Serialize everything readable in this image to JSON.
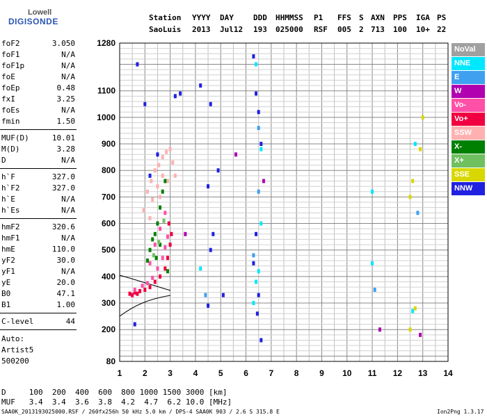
{
  "logo": {
    "line1": "Lowell",
    "line2": "DIGISONDE"
  },
  "header": {
    "labels": [
      "Station",
      "YYYY",
      "DAY",
      "DDD",
      "HHMMSS",
      "P1",
      "FFS",
      "S",
      "AXN",
      "PPS",
      "IGA",
      "PS"
    ],
    "values": [
      "SaoLuis",
      "2013",
      "Jul12",
      "193",
      "025000",
      "RSF",
      "005",
      "2",
      "713",
      "100",
      "10+",
      "22"
    ]
  },
  "params": {
    "group1": [
      {
        "k": "foF2",
        "v": "3.050"
      },
      {
        "k": "foF1",
        "v": "N/A"
      },
      {
        "k": "foF1p",
        "v": "N/A"
      },
      {
        "k": "foE",
        "v": "N/A"
      },
      {
        "k": "foEp",
        "v": "0.48"
      },
      {
        "k": "fxI",
        "v": "3.25"
      },
      {
        "k": "foEs",
        "v": "N/A"
      },
      {
        "k": "fmin",
        "v": "1.50"
      }
    ],
    "group2": [
      {
        "k": "MUF(D)",
        "v": "10.01"
      },
      {
        "k": "M(D)",
        "v": "3.28"
      },
      {
        "k": "D",
        "v": "N/A"
      }
    ],
    "group3": [
      {
        "k": "h`F",
        "v": "327.0"
      },
      {
        "k": "h`F2",
        "v": "327.0"
      },
      {
        "k": "h`E",
        "v": "N/A"
      },
      {
        "k": "h`Es",
        "v": "N/A"
      }
    ],
    "group4": [
      {
        "k": "hmF2",
        "v": "320.6"
      },
      {
        "k": "hmF1",
        "v": "N/A"
      },
      {
        "k": "hmE",
        "v": "110.0"
      },
      {
        "k": "yF2",
        "v": "30.0"
      },
      {
        "k": "yF1",
        "v": "N/A"
      },
      {
        "k": "yE",
        "v": "20.0"
      },
      {
        "k": "B0",
        "v": "47.1"
      },
      {
        "k": "B1",
        "v": "1.00"
      }
    ],
    "clevel": {
      "k": "C-level",
      "v": "44"
    },
    "auto": [
      "Auto:",
      "Artist5",
      "500200"
    ]
  },
  "legend": [
    {
      "label": "NoVal",
      "color": "#a0a0a0"
    },
    {
      "label": "NNE",
      "color": "#00e8ff"
    },
    {
      "label": "E",
      "color": "#40a0f0"
    },
    {
      "label": "W",
      "color": "#b000b0"
    },
    {
      "label": "Vo-",
      "color": "#ff50a8"
    },
    {
      "label": "Vo+",
      "color": "#f00040"
    },
    {
      "label": "SSW",
      "color": "#ffb0b0"
    },
    {
      "label": "X-",
      "color": "#008000"
    },
    {
      "label": "X+",
      "color": "#70c060"
    },
    {
      "label": "SSE",
      "color": "#d8d800"
    },
    {
      "label": "NNW",
      "color": "#2020e0"
    }
  ],
  "bottom": {
    "d_row": "D     100  200  400  600  800 1000 1500 3000 [km]",
    "muf_row": "MUF   3.4  3.4  3.6  3.8  4.2  4.7  6.2 10.0 [MHz]"
  },
  "footer": {
    "left": "SAA0K_2013193025000.RSF / 260fx256h 50 kHz 5.0 km / DPS-4 SAA0K 903 / 2.6 S 315.8 E",
    "right": "Ion2Png 1.3.17"
  },
  "chart_data": {
    "type": "scatter",
    "xlim": [
      1,
      14
    ],
    "ylim": [
      80,
      1280
    ],
    "x_ticks": [
      "1",
      "2",
      "3",
      "4",
      "5",
      "6",
      "7",
      "8",
      "9",
      "10",
      "11",
      "12",
      "13",
      "14"
    ],
    "y_ticks": [
      "80",
      "200",
      "300",
      "400",
      "500",
      "600",
      "700",
      "800",
      "900",
      "1000",
      "1100",
      "1280"
    ],
    "grid": true,
    "series": [
      {
        "name": "SSW",
        "color": "#ffb0b0",
        "points": [
          [
            1.95,
            650
          ],
          [
            2.1,
            720
          ],
          [
            2.25,
            760
          ],
          [
            2.4,
            800
          ],
          [
            2.55,
            820
          ],
          [
            2.7,
            850
          ],
          [
            2.85,
            870
          ],
          [
            3.0,
            880
          ],
          [
            3.1,
            830
          ],
          [
            3.2,
            780
          ],
          [
            2.3,
            690
          ],
          [
            2.5,
            740
          ],
          [
            2.7,
            780
          ],
          [
            2.9,
            760
          ],
          [
            2.6,
            700
          ],
          [
            2.2,
            620
          ]
        ]
      },
      {
        "name": "Vo+",
        "color": "#f00040",
        "points": [
          [
            1.4,
            335
          ],
          [
            1.6,
            340
          ],
          [
            1.8,
            345
          ],
          [
            2.0,
            350
          ],
          [
            2.2,
            360
          ],
          [
            2.4,
            380
          ],
          [
            2.6,
            400
          ],
          [
            2.8,
            430
          ],
          [
            2.9,
            470
          ],
          [
            3.0,
            520
          ],
          [
            3.05,
            560
          ],
          [
            2.95,
            600
          ],
          [
            1.5,
            330
          ],
          [
            1.7,
            335
          ]
        ]
      },
      {
        "name": "Vo-",
        "color": "#ff50a8",
        "points": [
          [
            1.6,
            350
          ],
          [
            1.9,
            365
          ],
          [
            2.1,
            375
          ],
          [
            2.3,
            395
          ],
          [
            2.5,
            430
          ],
          [
            2.7,
            470
          ],
          [
            2.8,
            510
          ],
          [
            2.9,
            550
          ],
          [
            2.2,
            450
          ],
          [
            2.4,
            520
          ],
          [
            2.6,
            580
          ],
          [
            2.8,
            640
          ]
        ]
      },
      {
        "name": "X-",
        "color": "#008000",
        "points": [
          [
            2.2,
            500
          ],
          [
            2.3,
            540
          ],
          [
            2.4,
            560
          ],
          [
            2.5,
            600
          ],
          [
            2.6,
            660
          ],
          [
            2.7,
            720
          ],
          [
            2.8,
            760
          ],
          [
            2.1,
            460
          ],
          [
            2.6,
            520
          ],
          [
            2.45,
            470
          ],
          [
            2.9,
            420
          ]
        ]
      },
      {
        "name": "X+",
        "color": "#70c060",
        "points": [
          [
            2.35,
            480
          ],
          [
            2.55,
            530
          ],
          [
            2.75,
            610
          ]
        ]
      },
      {
        "name": "NNE",
        "color": "#00e8ff",
        "points": [
          [
            4.2,
            430
          ],
          [
            6.3,
            300
          ],
          [
            6.4,
            380
          ],
          [
            6.5,
            420
          ],
          [
            6.6,
            600
          ],
          [
            6.4,
            1200
          ],
          [
            6.6,
            880
          ],
          [
            11.0,
            450
          ],
          [
            11.0,
            720
          ],
          [
            12.6,
            270
          ],
          [
            12.7,
            900
          ]
        ]
      },
      {
        "name": "E",
        "color": "#40a0f0",
        "points": [
          [
            4.4,
            330
          ],
          [
            6.3,
            480
          ],
          [
            6.5,
            720
          ],
          [
            6.5,
            960
          ],
          [
            11.1,
            350
          ],
          [
            12.8,
            640
          ]
        ]
      },
      {
        "name": "W",
        "color": "#b000b0",
        "points": [
          [
            5.6,
            860
          ],
          [
            6.7,
            760
          ],
          [
            11.3,
            200
          ],
          [
            12.9,
            180
          ],
          [
            3.6,
            560
          ]
        ]
      },
      {
        "name": "SSE",
        "color": "#d8d800",
        "points": [
          [
            12.5,
            700
          ],
          [
            12.6,
            760
          ],
          [
            12.9,
            880
          ],
          [
            13.0,
            1000
          ],
          [
            12.5,
            200
          ],
          [
            12.7,
            280
          ]
        ]
      },
      {
        "name": "NNW",
        "color": "#2020e0",
        "points": [
          [
            1.6,
            220
          ],
          [
            1.7,
            1200
          ],
          [
            2.0,
            1050
          ],
          [
            2.2,
            780
          ],
          [
            2.5,
            860
          ],
          [
            3.2,
            1080
          ],
          [
            3.4,
            1090
          ],
          [
            4.2,
            1120
          ],
          [
            4.6,
            1050
          ],
          [
            4.5,
            740
          ],
          [
            4.7,
            560
          ],
          [
            4.9,
            800
          ],
          [
            4.5,
            290
          ],
          [
            4.6,
            500
          ],
          [
            5.1,
            330
          ],
          [
            6.3,
            1230
          ],
          [
            6.4,
            1090
          ],
          [
            6.5,
            1020
          ],
          [
            6.6,
            900
          ],
          [
            6.45,
            260
          ],
          [
            6.4,
            560
          ],
          [
            6.3,
            450
          ],
          [
            6.5,
            330
          ],
          [
            6.6,
            160
          ]
        ]
      }
    ]
  }
}
